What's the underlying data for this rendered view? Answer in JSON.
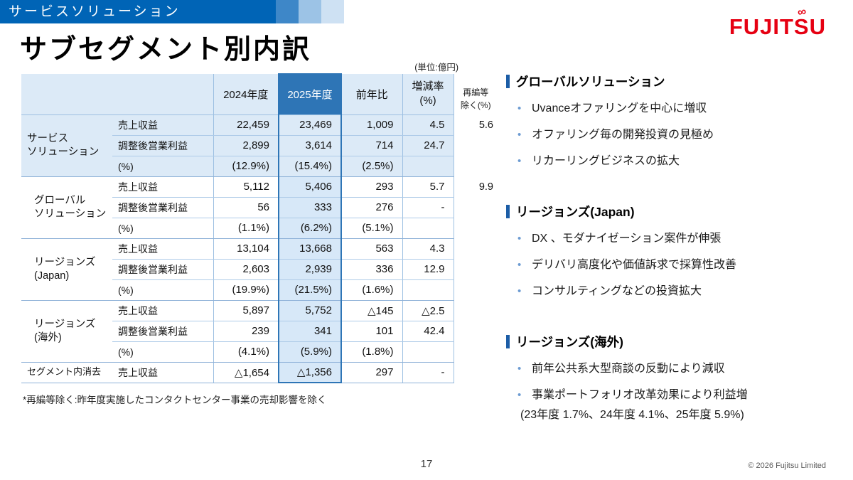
{
  "header": {
    "category_label": "サービスソリューション",
    "title": "サブセグメント別内訳",
    "logo_text": "FUJITSU"
  },
  "table": {
    "unit_note": "(単位:億円)",
    "col_headers": {
      "fy2024": "2024年度",
      "fy2025": "2025年度",
      "yoy": "前年比",
      "rate_line1": "増減率",
      "rate_line2": "(%)",
      "excl_line1": "再編等",
      "excl_line2": "除く(%)"
    },
    "groups": [
      {
        "name": "サービス\nソリューション",
        "highlight": true,
        "rows": [
          {
            "metric": "売上収益",
            "fy2024": "22,459",
            "fy2025": "23,469",
            "yoy": "1,009",
            "rate": "4.5",
            "excl": "5.6"
          },
          {
            "metric": "調整後営業利益",
            "fy2024": "2,899",
            "fy2025": "3,614",
            "yoy": "714",
            "rate": "24.7",
            "excl": ""
          },
          {
            "metric": "(%)",
            "fy2024": "(12.9%)",
            "fy2025": "(15.4%)",
            "yoy": "(2.5%)",
            "rate": "",
            "excl": ""
          }
        ]
      },
      {
        "name": "グローバル\nソリューション",
        "indent": true,
        "rows": [
          {
            "metric": "売上収益",
            "fy2024": "5,112",
            "fy2025": "5,406",
            "yoy": "293",
            "rate": "5.7",
            "excl": "9.9"
          },
          {
            "metric": "調整後営業利益",
            "fy2024": "56",
            "fy2025": "333",
            "yoy": "276",
            "rate": "-",
            "excl": ""
          },
          {
            "metric": "(%)",
            "fy2024": "(1.1%)",
            "fy2025": "(6.2%)",
            "yoy": "(5.1%)",
            "rate": "",
            "excl": ""
          }
        ]
      },
      {
        "name": "リージョンズ\n(Japan)",
        "indent": true,
        "rows": [
          {
            "metric": "売上収益",
            "fy2024": "13,104",
            "fy2025": "13,668",
            "yoy": "563",
            "rate": "4.3",
            "excl": ""
          },
          {
            "metric": "調整後営業利益",
            "fy2024": "2,603",
            "fy2025": "2,939",
            "yoy": "336",
            "rate": "12.9",
            "excl": ""
          },
          {
            "metric": "(%)",
            "fy2024": "(19.9%)",
            "fy2025": "(21.5%)",
            "yoy": "(1.6%)",
            "rate": "",
            "excl": ""
          }
        ]
      },
      {
        "name": "リージョンズ\n(海外)",
        "indent": true,
        "rows": [
          {
            "metric": "売上収益",
            "fy2024": "5,897",
            "fy2025": "5,752",
            "yoy": "△145",
            "rate": "△2.5",
            "excl": ""
          },
          {
            "metric": "調整後営業利益",
            "fy2024": "239",
            "fy2025": "341",
            "yoy": "101",
            "rate": "42.4",
            "excl": ""
          },
          {
            "metric": "(%)",
            "fy2024": "(4.1%)",
            "fy2025": "(5.9%)",
            "yoy": "(1.8%)",
            "rate": "",
            "excl": ""
          }
        ]
      },
      {
        "name": "セグメント内消去",
        "small": true,
        "rows": [
          {
            "metric": "売上収益",
            "fy2024": "△1,654",
            "fy2025": "△1,356",
            "yoy": "297",
            "rate": "-",
            "excl": ""
          }
        ]
      }
    ],
    "footnote": "*再編等除く:昨年度実施したコンタクトセンター事業の売却影響を除く"
  },
  "sections": [
    {
      "title": "グローバルソリューション",
      "items": [
        {
          "text": "Uvanceオファリングを中心に増収",
          "style": "bullet"
        },
        {
          "text": "オファリング毎の開発投資の見極め",
          "style": "bullet"
        },
        {
          "text": "リカーリングビジネスの拡大",
          "style": "bullet"
        }
      ]
    },
    {
      "title": "リージョンズ(Japan)",
      "items": [
        {
          "text": "DX 、モダナイゼーション案件が伸張",
          "style": "bullet"
        },
        {
          "text": "デリバリ高度化や価値訴求で採算性改善",
          "style": "bullet"
        },
        {
          "text": "コンサルティングなどの投資拡大",
          "style": "bullet"
        }
      ]
    },
    {
      "title": "リージョンズ(海外)",
      "items": [
        {
          "text": "前年公共系大型商談の反動により減収",
          "style": "bullet"
        },
        {
          "text": "事業ポートフォリオ改革効果により利益増",
          "style": "bullet"
        },
        {
          "text": "(23年度 1.7%、24年度 4.1%、25年度 5.9%)",
          "style": "plain"
        }
      ]
    }
  ],
  "footer": {
    "page_number": "17",
    "copyright": "© 2026 Fujitsu Limited"
  }
}
